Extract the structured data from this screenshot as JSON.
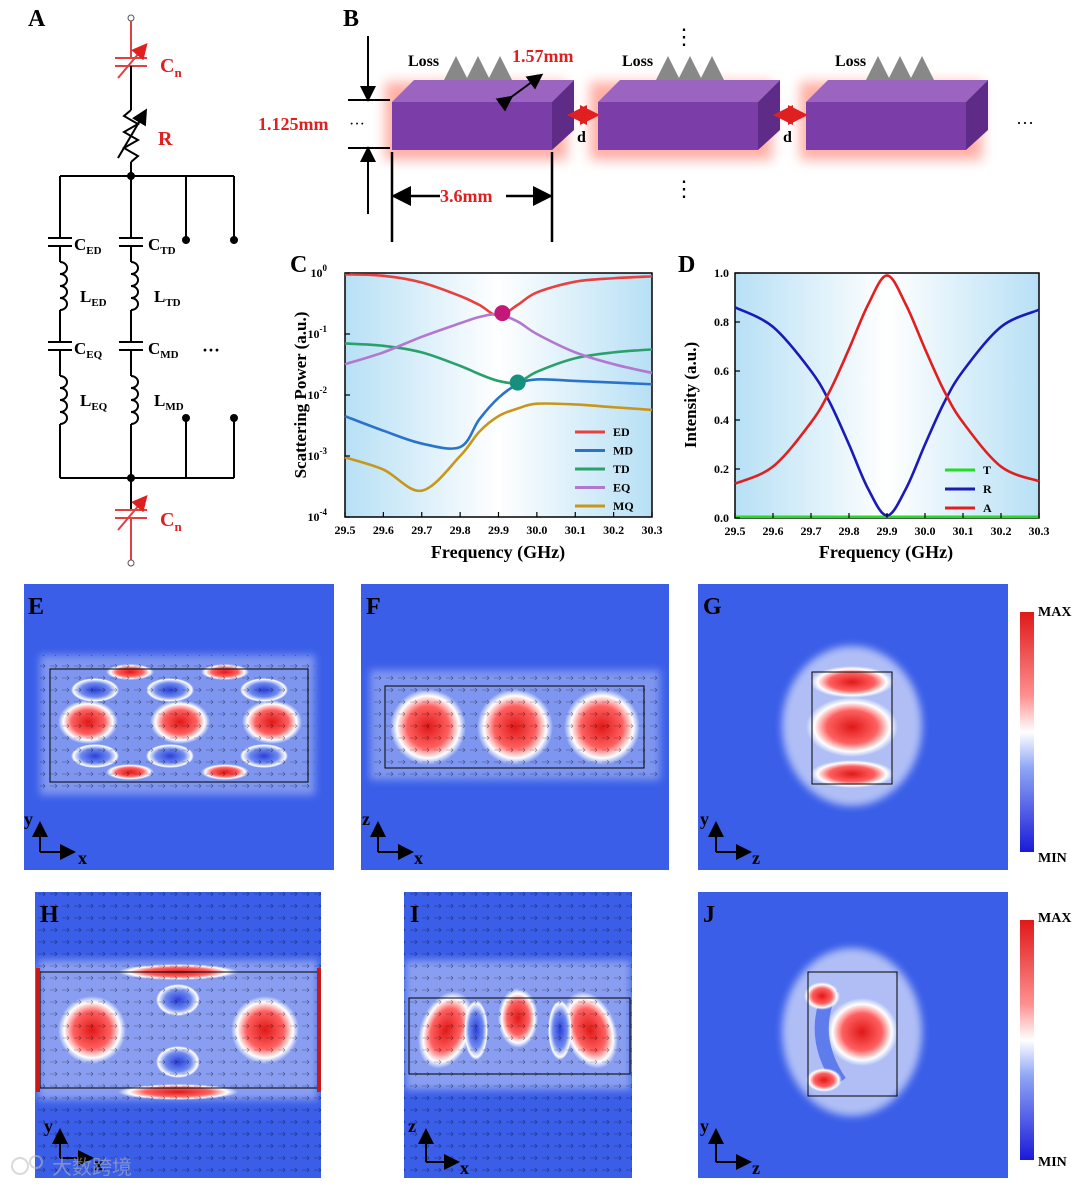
{
  "panel_labels": {
    "A": "A",
    "B": "B",
    "C": "C",
    "D": "D",
    "E": "E",
    "F": "F",
    "G": "G",
    "H": "H",
    "I": "I",
    "J": "J"
  },
  "circuit": {
    "cn_top": "C",
    "cn_top_sub": "n",
    "r": "R",
    "c_ed": "C",
    "c_ed_sub": "ED",
    "l_ed": "L",
    "l_ed_sub": "ED",
    "c_eq": "C",
    "c_eq_sub": "EQ",
    "l_eq": "L",
    "l_eq_sub": "EQ",
    "c_td": "C",
    "c_td_sub": "TD",
    "l_td": "L",
    "l_td_sub": "TD",
    "c_md": "C",
    "c_md_sub": "MD",
    "l_md": "L",
    "l_md_sub": "MD",
    "dots": "···",
    "cn_bot": "C",
    "cn_bot_sub": "n"
  },
  "structure": {
    "loss": [
      "Loss",
      "Loss",
      "Loss"
    ],
    "width": "1.57mm",
    "height": "1.125mm",
    "length": "3.6mm",
    "gap": [
      "d",
      "d"
    ],
    "ellipsis": "···",
    "vdots": "⋮"
  },
  "chart_data": [
    {
      "type": "line",
      "panel": "C",
      "xlabel": "Frequency (GHz)",
      "ylabel": "Scattering Power (a.u.)",
      "xlim": [
        29.5,
        30.3
      ],
      "ylim": [
        0.0001,
        1
      ],
      "yscale": "log",
      "xticks": [
        "29.5",
        "29.6",
        "29.7",
        "29.8",
        "29.9",
        "30.0",
        "30.1",
        "30.2",
        "30.3"
      ],
      "yticks": [
        "10",
        "10",
        "10",
        "10",
        "10"
      ],
      "ytick_exp": [
        "-4",
        "-3",
        "-2",
        "-1",
        "0"
      ],
      "x": [
        29.5,
        29.6,
        29.7,
        29.8,
        29.85,
        29.9,
        29.95,
        30.0,
        30.1,
        30.2,
        30.3
      ],
      "series": [
        {
          "name": "ED",
          "color": "#e8403f",
          "values": [
            0.95,
            0.9,
            0.7,
            0.42,
            0.3,
            0.2,
            0.3,
            0.48,
            0.72,
            0.82,
            0.88
          ]
        },
        {
          "name": "MD",
          "color": "#2a73c8",
          "values": [
            0.0045,
            0.0026,
            0.0016,
            0.0014,
            0.004,
            0.009,
            0.015,
            0.018,
            0.017,
            0.016,
            0.015
          ]
        },
        {
          "name": "TD",
          "color": "#2aa06a",
          "values": [
            0.07,
            0.064,
            0.05,
            0.03,
            0.022,
            0.017,
            0.016,
            0.024,
            0.04,
            0.05,
            0.056
          ]
        },
        {
          "name": "EQ",
          "color": "#b278d0",
          "values": [
            0.032,
            0.05,
            0.09,
            0.15,
            0.19,
            0.21,
            0.16,
            0.1,
            0.05,
            0.032,
            0.023
          ]
        },
        {
          "name": "MQ",
          "color": "#c8961a",
          "values": [
            0.00095,
            0.0006,
            0.00027,
            0.001,
            0.0025,
            0.0045,
            0.006,
            0.0072,
            0.007,
            0.0063,
            0.0057
          ]
        }
      ],
      "markers": [
        {
          "x": 29.91,
          "y": 0.22,
          "color": "#c2187a"
        },
        {
          "x": 29.95,
          "y": 0.016,
          "color": "#14907c"
        }
      ],
      "legend_position": "bottom-right"
    },
    {
      "type": "line",
      "panel": "D",
      "xlabel": "Frequency (GHz)",
      "ylabel": "Intensity (a.u.)",
      "xlim": [
        29.5,
        30.3
      ],
      "ylim": [
        0,
        1.0
      ],
      "xticks": [
        "29.5",
        "29.6",
        "29.7",
        "29.8",
        "29.9",
        "30.0",
        "30.1",
        "30.2",
        "30.3"
      ],
      "yticks": [
        "0.0",
        "0.2",
        "0.4",
        "0.6",
        "0.8",
        "1.0"
      ],
      "x": [
        29.5,
        29.6,
        29.7,
        29.75,
        29.8,
        29.85,
        29.9,
        29.95,
        30.0,
        30.05,
        30.1,
        30.2,
        30.3
      ],
      "series": [
        {
          "name": "T",
          "color": "#22dd22",
          "values": [
            0.005,
            0.005,
            0.005,
            0.005,
            0.005,
            0.005,
            0.005,
            0.005,
            0.005,
            0.005,
            0.005,
            0.005,
            0.005
          ]
        },
        {
          "name": "R",
          "color": "#1a1ab8",
          "values": [
            0.86,
            0.78,
            0.6,
            0.47,
            0.3,
            0.12,
            0.01,
            0.12,
            0.3,
            0.47,
            0.6,
            0.78,
            0.85
          ]
        },
        {
          "name": "A",
          "color": "#e02020",
          "values": [
            0.14,
            0.21,
            0.39,
            0.52,
            0.69,
            0.87,
            0.99,
            0.87,
            0.69,
            0.52,
            0.39,
            0.21,
            0.15
          ]
        }
      ],
      "legend_position": "bottom-right"
    }
  ],
  "field_maps": {
    "E": {
      "ax1": "y",
      "ax2": "x"
    },
    "F": {
      "ax1": "z",
      "ax2": "x"
    },
    "G": {
      "ax1": "y",
      "ax2": "z",
      "max": "MAX",
      "min": "MIN"
    },
    "H": {
      "ax1": "y",
      "ax2": "x"
    },
    "I": {
      "ax1": "z",
      "ax2": "x"
    },
    "J": {
      "ax1": "y",
      "ax2": "z",
      "max": "MAX",
      "min": "MIN"
    }
  },
  "colors": {
    "field_bg": "#3a5ee8",
    "field_hot": "#e01818",
    "cube": "#7b3ea8",
    "glow": "#ff6b5a",
    "annotation": "#e02020",
    "bg_gradient": "#bfe4f6"
  },
  "watermark": "大数跨境"
}
